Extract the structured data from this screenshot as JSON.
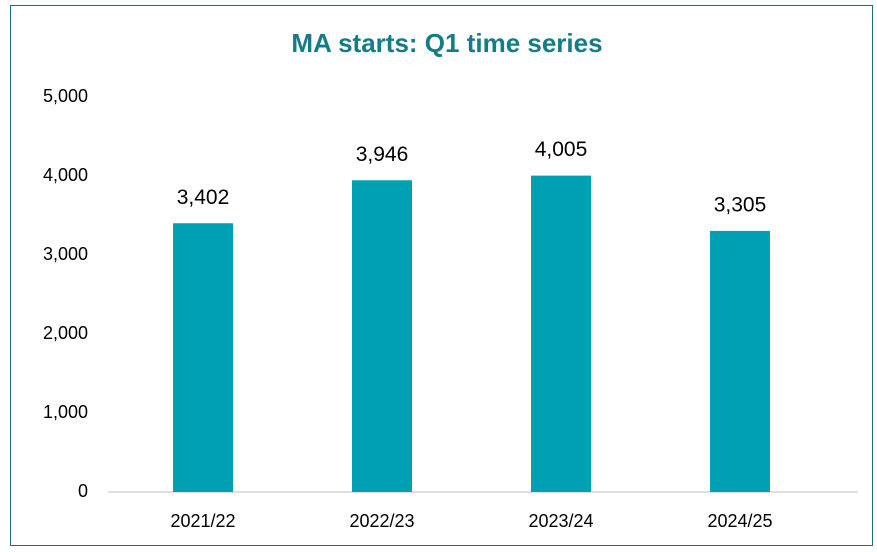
{
  "chart_data": {
    "type": "bar",
    "title": "MA starts: Q1 time series",
    "categories": [
      "2021/22",
      "2022/23",
      "2023/24",
      "2024/25"
    ],
    "values": [
      3402,
      3946,
      4005,
      3305
    ],
    "value_labels": [
      "3,402",
      "3,946",
      "4,005",
      "3,305"
    ],
    "color": "#00a0b4",
    "ylim": [
      0,
      5000
    ],
    "yticks": [
      0,
      {
        "value": 1000,
        "label": "1,000"
      },
      {
        "value": 2000,
        "label": "2,000"
      },
      {
        "value": 3000,
        "label": "3,000"
      },
      {
        "value": 4000,
        "label": "4,000"
      },
      {
        "value": 5000,
        "label": "5,000"
      }
    ],
    "grid": false
  }
}
